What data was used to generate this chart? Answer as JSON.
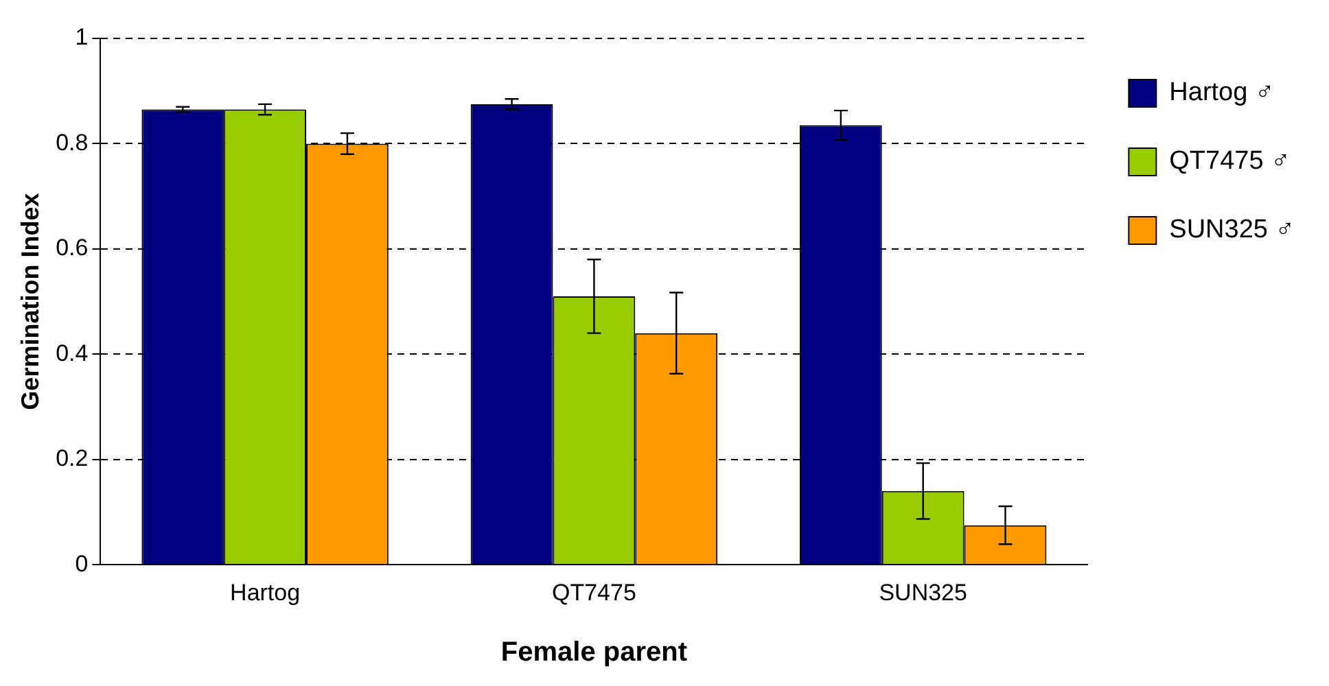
{
  "chart_data": {
    "type": "bar",
    "xlabel": "Female parent",
    "ylabel": "Germination Index",
    "categories": [
      "Hartog",
      "QT7475",
      "SUN325"
    ],
    "series": [
      {
        "name": "Hartog ♂",
        "color": "#000080",
        "values": [
          0.865,
          0.875,
          0.835
        ],
        "errors": [
          0.005,
          0.01,
          0.028
        ]
      },
      {
        "name": "QT7475 ♂",
        "color": "#99cc00",
        "values": [
          0.865,
          0.51,
          0.14
        ],
        "errors": [
          0.01,
          0.07,
          0.053
        ]
      },
      {
        "name": "SUN325 ♂",
        "color": "#ff9900",
        "values": [
          0.8,
          0.44,
          0.075
        ],
        "errors": [
          0.02,
          0.077,
          0.036
        ]
      }
    ],
    "ylim": [
      0,
      1
    ],
    "yticks": [
      0,
      0.2,
      0.4,
      0.6,
      0.8,
      1
    ],
    "grid": "y",
    "legend": "top right"
  }
}
